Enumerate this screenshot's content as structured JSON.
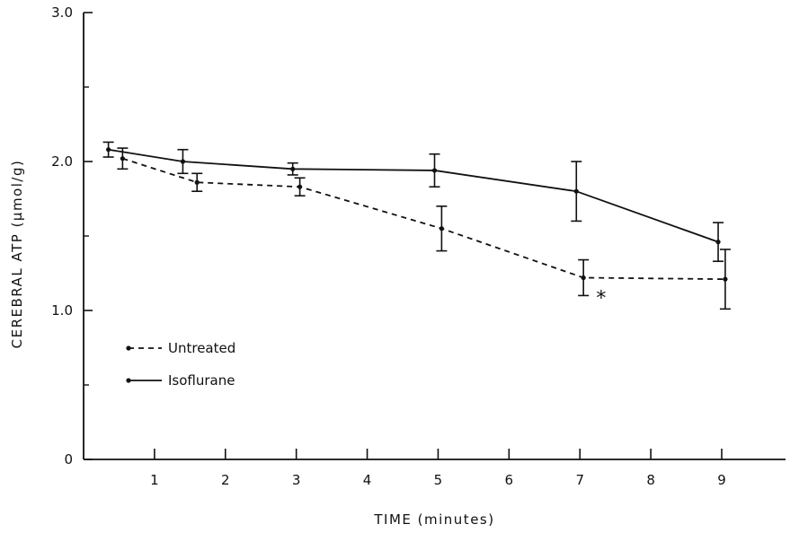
{
  "chart_data": {
    "type": "line",
    "title": "",
    "xlabel": "TIME (minutes)",
    "ylabel": "CEREBRAL ATP (µmol/g)",
    "xlim": [
      0,
      9.9
    ],
    "ylim": [
      0,
      3.0
    ],
    "x_ticks": [
      "1",
      "2",
      "3",
      "4",
      "5",
      "6",
      "7",
      "8",
      "9"
    ],
    "y_ticks": [
      "0",
      "1.0",
      "2.0",
      "3.0"
    ],
    "grid": false,
    "legend_position": "bottom-left",
    "series": [
      {
        "name": "Untreated",
        "line_style": "dashed",
        "color": "#111111",
        "points": [
          {
            "x": 0.55,
            "y": 2.02,
            "err": 0.07
          },
          {
            "x": 1.6,
            "y": 1.86,
            "err": 0.06
          },
          {
            "x": 3.05,
            "y": 1.83,
            "err": 0.06
          },
          {
            "x": 5.05,
            "y": 1.55,
            "err": 0.15
          },
          {
            "x": 7.05,
            "y": 1.22,
            "err": 0.12
          },
          {
            "x": 9.05,
            "y": 1.21,
            "err": 0.2
          }
        ]
      },
      {
        "name": "Isoflurane",
        "line_style": "solid",
        "color": "#111111",
        "points": [
          {
            "x": 0.35,
            "y": 2.08,
            "err": 0.05
          },
          {
            "x": 1.4,
            "y": 2.0,
            "err": 0.08
          },
          {
            "x": 2.95,
            "y": 1.95,
            "err": 0.04
          },
          {
            "x": 4.95,
            "y": 1.94,
            "err": 0.11
          },
          {
            "x": 6.95,
            "y": 1.8,
            "err": 0.2
          },
          {
            "x": 8.95,
            "y": 1.46,
            "err": 0.13
          }
        ]
      }
    ],
    "annotations": [
      {
        "text": "*",
        "x": 7.3,
        "y": 1.1
      }
    ]
  }
}
